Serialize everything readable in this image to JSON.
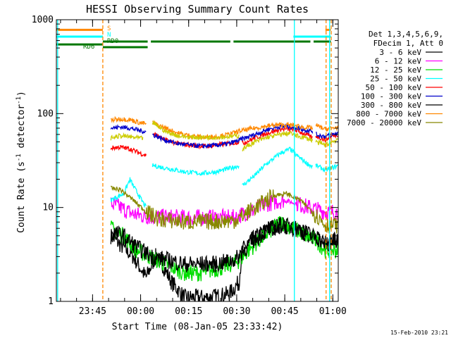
{
  "chart_data": {
    "type": "line",
    "title": "HESSI Observing Summary Count Rates",
    "xlabel": "Start Time (08-Jan-05 23:33:42)",
    "ylabel_main": "Count Rate (s",
    "ylabel_exp1": "-1",
    "ylabel_mid": " detector",
    "ylabel_exp2": "-1",
    "ylabel_end": ")",
    "y_scale": "log",
    "ylim": [
      1,
      1000
    ],
    "x_unit": "minutes after 23:33:42",
    "xlim": [
      0,
      88
    ],
    "x_ticks": [
      {
        "t": 11.3,
        "label": "23:45"
      },
      {
        "t": 26.3,
        "label": "00:00"
      },
      {
        "t": 41.3,
        "label": "00:15"
      },
      {
        "t": 56.3,
        "label": "00:30"
      },
      {
        "t": 71.3,
        "label": "00:45"
      },
      {
        "t": 86.3,
        "label": "01:00"
      }
    ],
    "y_ticks": [
      {
        "v": 1,
        "label": "1"
      },
      {
        "v": 10,
        "label": "10"
      },
      {
        "v": 100,
        "label": "100"
      },
      {
        "v": 1000,
        "label": "1000"
      }
    ],
    "legend_header": [
      "Det 1,3,4,5,6,9,",
      "FDecim 1, Att 0"
    ],
    "legend_placement": "right",
    "series": [
      {
        "name": "3 - 6 keV",
        "color": "#000000",
        "segments": [
          [
            [
              17,
              5
            ],
            [
              20,
              4
            ],
            [
              24,
              3
            ],
            [
              28,
              1.8
            ],
            [
              31,
              3
            ],
            [
              33,
              2.5
            ],
            [
              36,
              1.6
            ],
            [
              40,
              1.1
            ],
            [
              48,
              1.1
            ],
            [
              54,
              1.2
            ],
            [
              57,
              1.6
            ],
            [
              58,
              3.5
            ],
            [
              61,
              4.5
            ],
            [
              66,
              6
            ],
            [
              71,
              6.5
            ],
            [
              76,
              5.5
            ],
            [
              80,
              5
            ],
            [
              84,
              4
            ],
            [
              87,
              4.5
            ],
            [
              88,
              4.5
            ]
          ]
        ]
      },
      {
        "name": "6 - 12 keV",
        "color": "#ff00ff",
        "segments": [
          [
            [
              17,
              11
            ],
            [
              20,
              10
            ],
            [
              24,
              8.5
            ],
            [
              28,
              8
            ],
            [
              40,
              7.8
            ],
            [
              56,
              7.8
            ],
            [
              58,
              8.5
            ],
            [
              61,
              9.2
            ],
            [
              66,
              11
            ],
            [
              71,
              12
            ],
            [
              75,
              11
            ],
            [
              79,
              10
            ],
            [
              84,
              9
            ],
            [
              88,
              9
            ]
          ]
        ]
      },
      {
        "name": "12 - 25 keV",
        "color": "#00dd00",
        "segments": [
          [
            [
              17,
              6
            ],
            [
              21,
              5
            ],
            [
              25,
              3.5
            ],
            [
              29,
              3
            ],
            [
              35,
              2.4
            ],
            [
              40,
              2
            ],
            [
              45,
              2
            ],
            [
              52,
              2.3
            ],
            [
              57,
              2.7
            ],
            [
              60,
              3.5
            ],
            [
              65,
              5
            ],
            [
              70,
              7
            ],
            [
              74,
              6
            ],
            [
              78,
              5
            ],
            [
              81,
              4.5
            ],
            [
              84,
              3.5
            ],
            [
              88,
              3.5
            ]
          ]
        ]
      },
      {
        "name": "25 - 50 keV",
        "color": "#00ffff",
        "segments": [
          [
            [
              17,
              12
            ],
            [
              21,
              14
            ],
            [
              23,
              20
            ],
            [
              24,
              17
            ],
            [
              26,
              13
            ],
            [
              28,
              10
            ]
          ],
          [
            [
              30,
              28
            ],
            [
              35,
              26
            ],
            [
              40,
              24
            ],
            [
              45,
              23
            ],
            [
              50,
              24
            ],
            [
              54,
              26
            ],
            [
              57,
              28
            ]
          ],
          [
            [
              58,
              17
            ],
            [
              62,
              22
            ],
            [
              65,
              28
            ],
            [
              70,
              38
            ],
            [
              73,
              42
            ],
            [
              75,
              36
            ],
            [
              78,
              30
            ],
            [
              80,
              27
            ]
          ],
          [
            [
              81,
              28
            ],
            [
              84,
              25
            ],
            [
              88,
              28
            ]
          ]
        ]
      },
      {
        "name": "50 - 100 keV",
        "color": "#ff0000",
        "segments": [
          [
            [
              17,
              43
            ],
            [
              20,
              44
            ],
            [
              23,
              42
            ],
            [
              26,
              38
            ],
            [
              28,
              36
            ]
          ],
          [
            [
              30,
              62
            ],
            [
              34,
              52
            ],
            [
              38,
              48
            ],
            [
              42,
              46
            ],
            [
              46,
              45
            ],
            [
              50,
              46
            ],
            [
              54,
              48
            ],
            [
              57,
              50
            ]
          ],
          [
            [
              58,
              48
            ],
            [
              62,
              55
            ],
            [
              66,
              62
            ],
            [
              70,
              68
            ],
            [
              74,
              68
            ],
            [
              78,
              60
            ],
            [
              80,
              55
            ]
          ],
          [
            [
              81,
              58
            ],
            [
              84,
              52
            ],
            [
              86,
              58
            ],
            [
              88,
              60
            ]
          ]
        ]
      },
      {
        "name": "100 - 300 keV",
        "color": "#0000cc",
        "segments": [
          [
            [
              17,
              70
            ],
            [
              20,
              72
            ],
            [
              23,
              70
            ],
            [
              26,
              66
            ],
            [
              28,
              64
            ]
          ],
          [
            [
              30,
              60
            ],
            [
              34,
              52
            ],
            [
              38,
              48
            ],
            [
              42,
              46
            ],
            [
              46,
              45
            ],
            [
              50,
              46
            ],
            [
              54,
              48
            ],
            [
              57,
              52
            ],
            [
              62,
              60
            ],
            [
              66,
              68
            ],
            [
              70,
              73
            ],
            [
              74,
              72
            ],
            [
              77,
              68
            ],
            [
              80,
              65
            ]
          ],
          [
            [
              81,
              60
            ],
            [
              84,
              57
            ],
            [
              88,
              62
            ]
          ]
        ]
      },
      {
        "name": "300 - 800 keV",
        "color": "#000000",
        "segments": [
          [
            [
              17,
              5.5
            ],
            [
              21,
              5
            ],
            [
              25,
              3.8
            ],
            [
              30,
              3
            ],
            [
              40,
              2.5
            ],
            [
              50,
              2.5
            ],
            [
              56,
              2.8
            ],
            [
              60,
              4
            ],
            [
              65,
              5.5
            ],
            [
              70,
              6.5
            ],
            [
              75,
              6
            ],
            [
              80,
              5
            ],
            [
              84,
              4.2
            ],
            [
              88,
              4.5
            ]
          ]
        ]
      },
      {
        "name": "800 - 7000 keV",
        "color": "#ff8800",
        "segments": [
          [
            [
              17,
              85
            ],
            [
              20,
              88
            ],
            [
              23,
              86
            ],
            [
              26,
              80
            ],
            [
              28,
              78
            ]
          ],
          [
            [
              30,
              80
            ],
            [
              34,
              70
            ],
            [
              38,
              62
            ],
            [
              42,
              58
            ],
            [
              46,
              56
            ],
            [
              50,
              57
            ],
            [
              54,
              60
            ],
            [
              57,
              65
            ],
            [
              62,
              70
            ],
            [
              66,
              74
            ],
            [
              70,
              76
            ],
            [
              74,
              75
            ],
            [
              77,
              72
            ],
            [
              80,
              70
            ]
          ],
          [
            [
              81,
              75
            ],
            [
              84,
              68
            ],
            [
              88,
              72
            ]
          ]
        ]
      },
      {
        "name": "7000 - 20000 keV",
        "color": "#888800",
        "segments": [
          [
            [
              17,
              16
            ],
            [
              20,
              15.5
            ],
            [
              24,
              12
            ],
            [
              28,
              9
            ],
            [
              32,
              7.5
            ],
            [
              40,
              7
            ],
            [
              50,
              7.1
            ],
            [
              56,
              7.3
            ],
            [
              60,
              9
            ],
            [
              64,
              11
            ],
            [
              68,
              13.5
            ],
            [
              72,
              14
            ],
            [
              76,
              12
            ],
            [
              80,
              9
            ],
            [
              84,
              6.5
            ],
            [
              88,
              6.5
            ]
          ]
        ]
      }
    ],
    "extra_series_color": "#cccc00",
    "extra_series": [
      [
        [
          17,
          55
        ],
        [
          20,
          58
        ],
        [
          24,
          56
        ],
        [
          27,
          54
        ]
      ],
      [
        [
          30,
          80
        ],
        [
          34,
          65
        ],
        [
          38,
          58
        ],
        [
          42,
          56
        ],
        [
          46,
          56
        ],
        [
          50,
          56
        ],
        [
          54,
          57
        ],
        [
          57,
          58
        ]
      ],
      [
        [
          58,
          42
        ],
        [
          62,
          50
        ],
        [
          66,
          56
        ],
        [
          70,
          60
        ],
        [
          73,
          62
        ],
        [
          75,
          58
        ],
        [
          78,
          55
        ],
        [
          80,
          52
        ]
      ],
      [
        [
          81,
          50
        ],
        [
          84,
          46
        ],
        [
          88,
          54
        ]
      ]
    ],
    "annotations": [
      {
        "label": "S",
        "color": "#ff8800"
      },
      {
        "label": "N",
        "color": "#00ffff"
      },
      {
        "label": "RD0",
        "color": "#007700"
      },
      {
        "label": "RD6",
        "color": "#007700"
      }
    ],
    "state_bars": [
      {
        "color": "#ff8800",
        "y": 780,
        "spans": [
          [
            0,
            14.5
          ],
          [
            84,
            85.7
          ]
        ]
      },
      {
        "color": "#00ffff",
        "y": 660,
        "spans": [
          [
            0,
            14.5
          ],
          [
            74,
            85.7
          ]
        ]
      },
      {
        "color": "#007700",
        "y": 585,
        "spans": [
          [
            14.5,
            28.5
          ],
          [
            29.5,
            54.3
          ],
          [
            55.3,
            79.3
          ],
          [
            80.3,
            85.7
          ]
        ]
      },
      {
        "color": "#007700",
        "y": 545,
        "spans": [
          [
            0,
            14.5
          ]
        ]
      },
      {
        "color": "#007700",
        "y": 510,
        "spans": [
          [
            14.5,
            28.5
          ]
        ]
      }
    ],
    "vlines": [
      {
        "t": 0.4,
        "color": "#00ffff",
        "dash": false
      },
      {
        "t": 14.5,
        "color": "#ff8800",
        "dash": true
      },
      {
        "t": 74.3,
        "color": "#00ffff",
        "dash": false
      },
      {
        "t": 84.2,
        "color": "#ff8800",
        "dash": true
      },
      {
        "t": 85.8,
        "color": "#ff8800",
        "dash": true
      },
      {
        "t": 85.3,
        "color": "#00ffff",
        "dash": false
      }
    ]
  },
  "footer": "15-Feb-2010 23:21"
}
